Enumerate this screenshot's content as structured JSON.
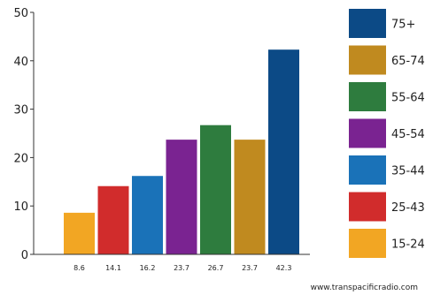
{
  "chart_data": {
    "type": "bar",
    "categories": [
      "8.6",
      "14.1",
      "16.2",
      "23.7",
      "26.7",
      "23.7",
      "42.3"
    ],
    "values": [
      8.6,
      14.1,
      16.2,
      23.7,
      26.7,
      23.7,
      42.3
    ],
    "bar_colors": [
      "#f2a623",
      "#d12c2c",
      "#1a72b8",
      "#7a2391",
      "#2e7c3e",
      "#c08a1f",
      "#0c4a86"
    ],
    "ylim": [
      0,
      50
    ],
    "yticks": [
      0,
      10,
      20,
      30,
      40,
      50
    ],
    "grid": false,
    "legend_placement": "right",
    "legend": [
      {
        "label": "75+",
        "color": "#0c4a86"
      },
      {
        "label": "65-74",
        "color": "#c08a1f"
      },
      {
        "label": "55-64",
        "color": "#2e7c3e"
      },
      {
        "label": "45-54",
        "color": "#7a2391"
      },
      {
        "label": "35-44",
        "color": "#1a72b8"
      },
      {
        "label": "25-43",
        "color": "#d12c2c"
      },
      {
        "label": "15-24",
        "color": "#f2a623"
      }
    ]
  },
  "watermark": "www.transpacificradio.com"
}
